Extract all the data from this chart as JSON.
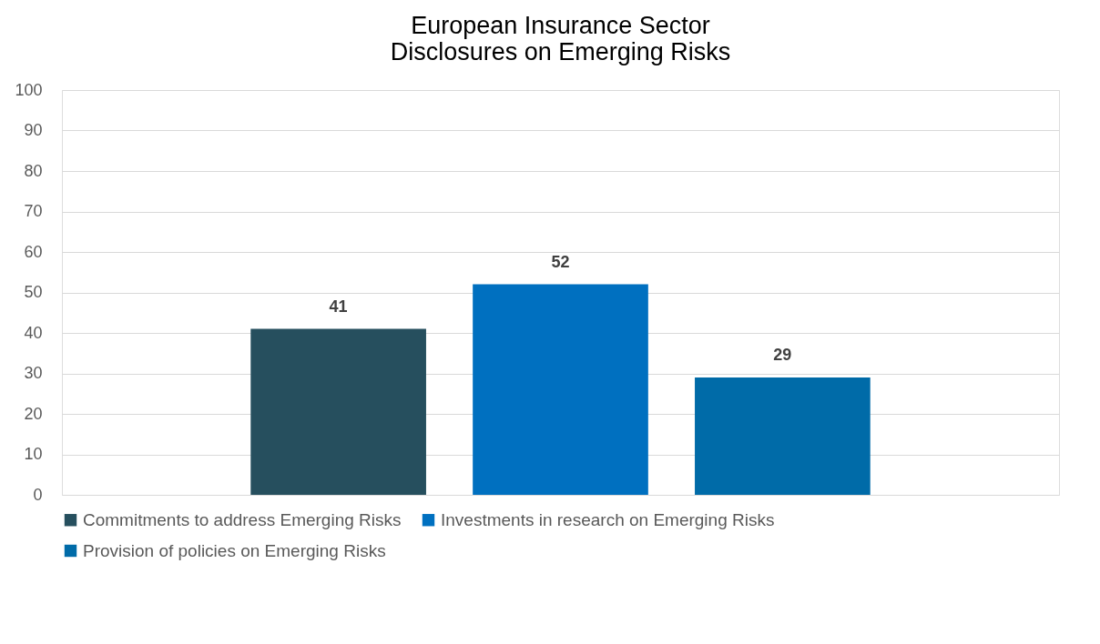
{
  "chart_data": {
    "type": "bar",
    "title": "European Insurance Sector\nDisclosures  on Emerging Risks",
    "categories": [
      null
    ],
    "series": [
      {
        "name": "Commitments to address Emerging Risks",
        "color": "#264f5e",
        "values": [
          41
        ]
      },
      {
        "name": "Investments in research on Emerging Risks",
        "color": "#0070c0",
        "values": [
          52
        ]
      },
      {
        "name": "Provision of policies on Emerging Risks",
        "color": "#006ba8",
        "values": [
          29
        ]
      }
    ],
    "ylim": [
      0,
      100
    ],
    "yticks": [
      0,
      10,
      20,
      30,
      40,
      50,
      60,
      70,
      80,
      90,
      100
    ],
    "grid": "y",
    "legend": "bottom",
    "data_labels": true
  }
}
